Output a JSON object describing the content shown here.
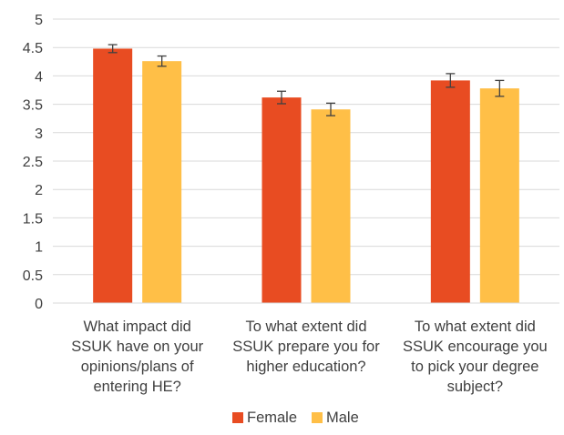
{
  "chart_data": {
    "type": "bar",
    "title": "",
    "xlabel": "",
    "ylabel": "",
    "ylim": [
      0,
      5
    ],
    "ytick_step": 0.5,
    "yticks": [
      "0",
      "0.5",
      "1",
      "1.5",
      "2",
      "2.5",
      "3",
      "3.5",
      "4",
      "4.5",
      "5"
    ],
    "grid": true,
    "legend_position": "bottom",
    "categories": [
      [
        "What impact did",
        "SSUK have on your",
        "opinions/plans of",
        "entering HE?"
      ],
      [
        "To what extent did",
        "SSUK prepare you for",
        "higher education?"
      ],
      [
        "To what extent did",
        "SSUK encourage you",
        "to pick your degree",
        "subject?"
      ]
    ],
    "series": [
      {
        "name": "Female",
        "color": "#E84C22",
        "values": [
          4.48,
          3.62,
          3.92
        ],
        "errors": [
          0.07,
          0.11,
          0.12
        ]
      },
      {
        "name": "Male",
        "color": "#FFBF47",
        "values": [
          4.26,
          3.41,
          3.78
        ],
        "errors": [
          0.09,
          0.11,
          0.14
        ]
      }
    ]
  }
}
